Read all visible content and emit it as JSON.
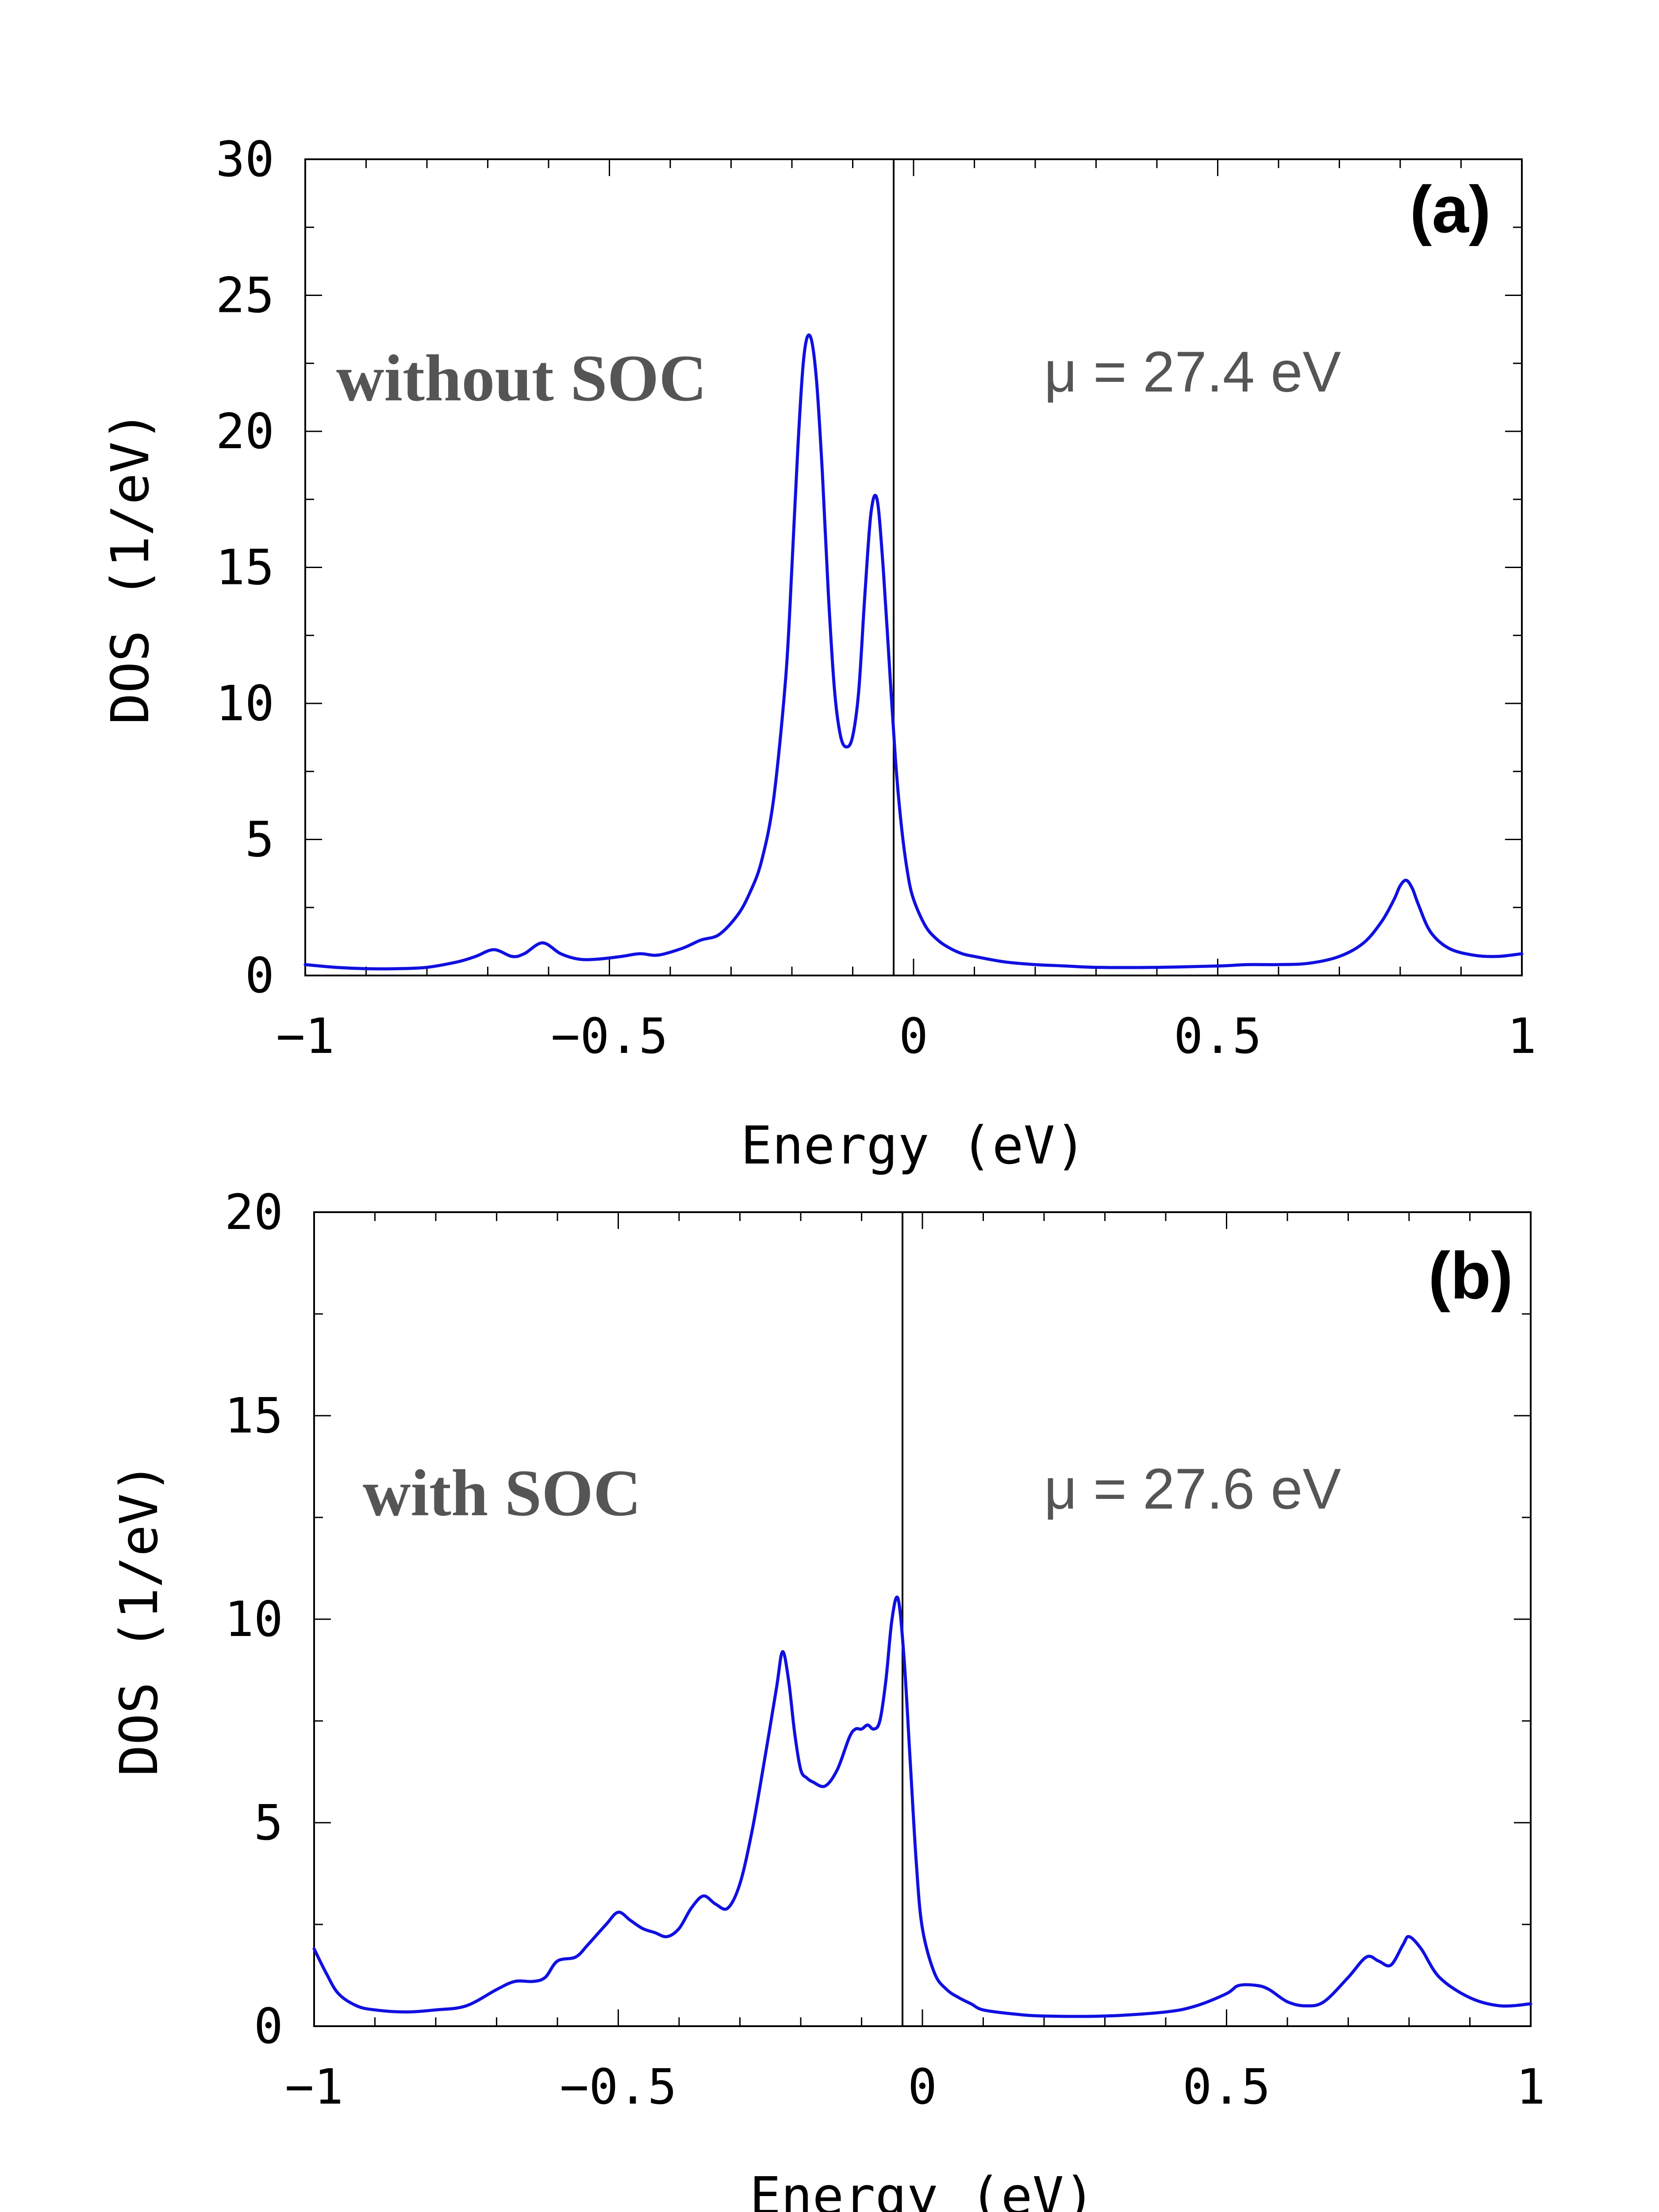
{
  "colors": {
    "curve": "#1010e0",
    "annotation": "#555555"
  },
  "chart_data": [
    {
      "type": "line",
      "panel_label": "(a)",
      "annotation": "without SOC",
      "chemical_potential": "μ = 27.4 eV",
      "xlabel": "Energy (eV)",
      "ylabel": "DOS (1/eV)",
      "xlim": [
        -1,
        1
      ],
      "ylim": [
        0,
        30
      ],
      "xticks": [
        -1,
        -0.5,
        0,
        0.5,
        1
      ],
      "xtick_labels": [
        "−1",
        "−0.5",
        "0",
        "0.5",
        "1"
      ],
      "yticks": [
        0,
        5,
        10,
        15,
        20,
        25,
        30
      ],
      "ytick_labels": [
        "0",
        "5",
        "10",
        "15",
        "20",
        "25",
        "30"
      ],
      "vertical_line_x": 0,
      "x": [
        -1.0,
        -0.95,
        -0.9,
        -0.85,
        -0.8,
        -0.75,
        -0.72,
        -0.69,
        -0.66,
        -0.64,
        -0.61,
        -0.58,
        -0.55,
        -0.52,
        -0.48,
        -0.45,
        -0.42,
        -0.38,
        -0.35,
        -0.32,
        -0.29,
        -0.27,
        -0.25,
        -0.23,
        -0.21,
        -0.2,
        -0.19,
        -0.18,
        -0.17,
        -0.16,
        -0.15,
        -0.14,
        -0.13,
        -0.12,
        -0.11,
        -0.1,
        -0.09,
        -0.08,
        -0.07,
        -0.06,
        -0.05,
        -0.04,
        -0.03,
        -0.02,
        -0.01,
        0.0,
        0.02,
        0.04,
        0.06,
        0.08,
        0.1,
        0.15,
        0.2,
        0.25,
        0.3,
        0.4,
        0.5,
        0.55,
        0.6,
        0.65,
        0.7,
        0.74,
        0.77,
        0.79,
        0.8,
        0.81,
        0.82,
        0.83,
        0.85,
        0.88,
        0.92,
        0.96,
        1.0
      ],
      "y": [
        0.4,
        0.3,
        0.25,
        0.25,
        0.3,
        0.5,
        0.7,
        0.95,
        0.7,
        0.8,
        1.2,
        0.8,
        0.6,
        0.6,
        0.7,
        0.8,
        0.75,
        1.0,
        1.3,
        1.5,
        2.2,
        3.0,
        4.2,
        6.5,
        11.0,
        15.0,
        19.5,
        22.8,
        23.5,
        22.0,
        18.5,
        14.0,
        10.5,
        8.8,
        8.4,
        8.8,
        10.5,
        14.0,
        17.0,
        17.5,
        15.0,
        11.5,
        8.0,
        5.5,
        3.8,
        2.8,
        1.8,
        1.3,
        1.0,
        0.8,
        0.7,
        0.5,
        0.4,
        0.35,
        0.3,
        0.3,
        0.35,
        0.4,
        0.4,
        0.45,
        0.7,
        1.2,
        2.0,
        2.8,
        3.3,
        3.5,
        3.2,
        2.6,
        1.6,
        1.0,
        0.75,
        0.7,
        0.8
      ]
    },
    {
      "type": "line",
      "panel_label": "(b)",
      "annotation": "with SOC",
      "chemical_potential": "μ = 27.6 eV",
      "xlabel": "Energy (eV)",
      "ylabel": "DOS (1/eV)",
      "xlim": [
        -1,
        1
      ],
      "ylim": [
        0,
        20
      ],
      "xticks": [
        -1,
        -0.5,
        0,
        0.5,
        1
      ],
      "xtick_labels": [
        "−1",
        "−0.5",
        "0",
        "0.5",
        "1"
      ],
      "yticks": [
        0,
        5,
        10,
        15,
        20
      ],
      "ytick_labels": [
        "0",
        "5",
        "10",
        "15",
        "20"
      ],
      "vertical_line_x": 0,
      "x": [
        -1.0,
        -0.98,
        -0.96,
        -0.93,
        -0.9,
        -0.85,
        -0.8,
        -0.75,
        -0.7,
        -0.67,
        -0.64,
        -0.62,
        -0.6,
        -0.57,
        -0.55,
        -0.52,
        -0.5,
        -0.48,
        -0.46,
        -0.44,
        -0.42,
        -0.4,
        -0.38,
        -0.36,
        -0.34,
        -0.32,
        -0.3,
        -0.28,
        -0.26,
        -0.24,
        -0.23,
        -0.22,
        -0.21,
        -0.2,
        -0.19,
        -0.18,
        -0.16,
        -0.14,
        -0.12,
        -0.11,
        -0.1,
        -0.09,
        -0.08,
        -0.07,
        -0.06,
        -0.05,
        -0.04,
        -0.03,
        -0.02,
        -0.01,
        0.0,
        0.02,
        0.04,
        0.06,
        0.08,
        0.1,
        0.15,
        0.2,
        0.3,
        0.4,
        0.45,
        0.5,
        0.52,
        0.55,
        0.57,
        0.6,
        0.63,
        0.66,
        0.7,
        0.73,
        0.75,
        0.77,
        0.79,
        0.8,
        0.82,
        0.85,
        0.9,
        0.95,
        1.0
      ],
      "y": [
        1.9,
        1.3,
        0.8,
        0.5,
        0.4,
        0.35,
        0.4,
        0.5,
        0.9,
        1.1,
        1.1,
        1.2,
        1.6,
        1.7,
        2.0,
        2.5,
        2.8,
        2.6,
        2.4,
        2.3,
        2.2,
        2.4,
        2.9,
        3.2,
        3.0,
        2.9,
        3.5,
        4.8,
        6.5,
        8.3,
        9.2,
        8.5,
        7.2,
        6.3,
        6.1,
        6.0,
        5.9,
        6.3,
        7.1,
        7.3,
        7.3,
        7.4,
        7.3,
        7.5,
        8.5,
        10.0,
        10.5,
        9.0,
        6.5,
        4.0,
        2.4,
        1.3,
        0.9,
        0.7,
        0.55,
        0.4,
        0.3,
        0.25,
        0.25,
        0.35,
        0.5,
        0.8,
        1.0,
        1.0,
        0.9,
        0.6,
        0.5,
        0.6,
        1.2,
        1.7,
        1.6,
        1.5,
        2.0,
        2.2,
        1.9,
        1.2,
        0.7,
        0.5,
        0.55
      ]
    }
  ]
}
